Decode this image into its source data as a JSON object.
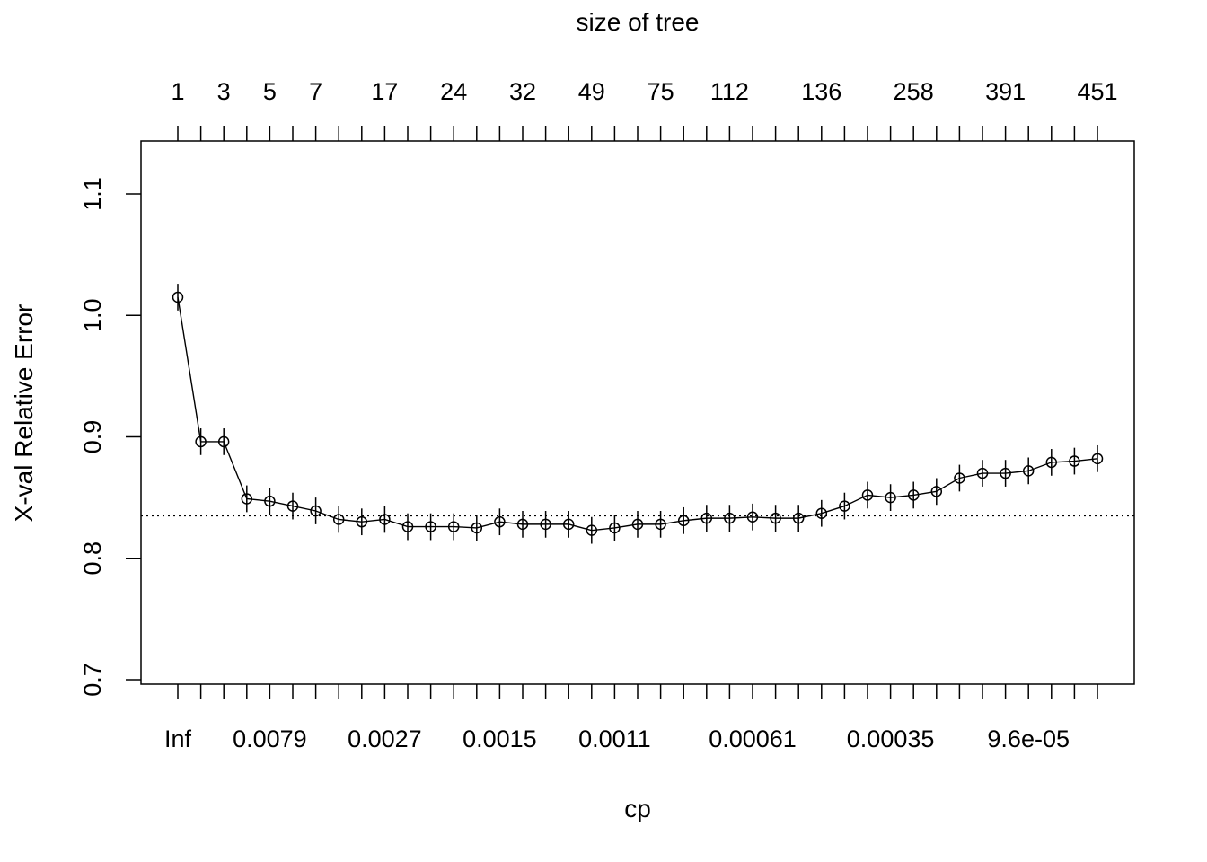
{
  "chart_data": {
    "type": "line",
    "top_axis_title": "size of tree",
    "xlabel": "cp",
    "ylabel": "X-val Relative Error",
    "ylim": [
      0.7,
      1.1
    ],
    "y_ticks": [
      "0.7",
      "0.8",
      "0.9",
      "1.0",
      "1.1"
    ],
    "reference_line": 0.835,
    "bottom_tick_labels": [
      {
        "label": "Inf",
        "index": 0
      },
      {
        "label": "0.0079",
        "index": 4
      },
      {
        "label": "0.0027",
        "index": 9
      },
      {
        "label": "0.0015",
        "index": 14
      },
      {
        "label": "0.0011",
        "index": 19
      },
      {
        "label": "0.00061",
        "index": 25
      },
      {
        "label": "0.00035",
        "index": 31
      },
      {
        "label": "9.6e-05",
        "index": 37
      }
    ],
    "top_tick_labels": [
      {
        "label": "1",
        "index": 0
      },
      {
        "label": "3",
        "index": 2
      },
      {
        "label": "5",
        "index": 4
      },
      {
        "label": "7",
        "index": 6
      },
      {
        "label": "17",
        "index": 9
      },
      {
        "label": "24",
        "index": 12
      },
      {
        "label": "32",
        "index": 15
      },
      {
        "label": "49",
        "index": 18
      },
      {
        "label": "75",
        "index": 21
      },
      {
        "label": "112",
        "index": 24
      },
      {
        "label": "136",
        "index": 28
      },
      {
        "label": "258",
        "index": 32
      },
      {
        "label": "391",
        "index": 36
      },
      {
        "label": "451",
        "index": 40
      }
    ],
    "values": [
      1.015,
      0.896,
      0.896,
      0.849,
      0.847,
      0.843,
      0.839,
      0.832,
      0.83,
      0.832,
      0.826,
      0.826,
      0.826,
      0.825,
      0.83,
      0.828,
      0.828,
      0.828,
      0.823,
      0.825,
      0.828,
      0.828,
      0.831,
      0.833,
      0.833,
      0.834,
      0.833,
      0.833,
      0.837,
      0.843,
      0.852,
      0.85,
      0.852,
      0.855,
      0.866,
      0.87,
      0.87,
      0.872,
      0.879,
      0.88,
      0.882
    ],
    "errors": [
      0.011,
      0.011,
      0.011,
      0.011,
      0.011,
      0.011,
      0.011,
      0.011,
      0.011,
      0.011,
      0.011,
      0.011,
      0.011,
      0.011,
      0.011,
      0.011,
      0.011,
      0.011,
      0.011,
      0.011,
      0.011,
      0.011,
      0.011,
      0.011,
      0.011,
      0.011,
      0.011,
      0.011,
      0.011,
      0.011,
      0.011,
      0.011,
      0.011,
      0.011,
      0.011,
      0.011,
      0.011,
      0.011,
      0.011,
      0.011,
      0.011
    ]
  }
}
